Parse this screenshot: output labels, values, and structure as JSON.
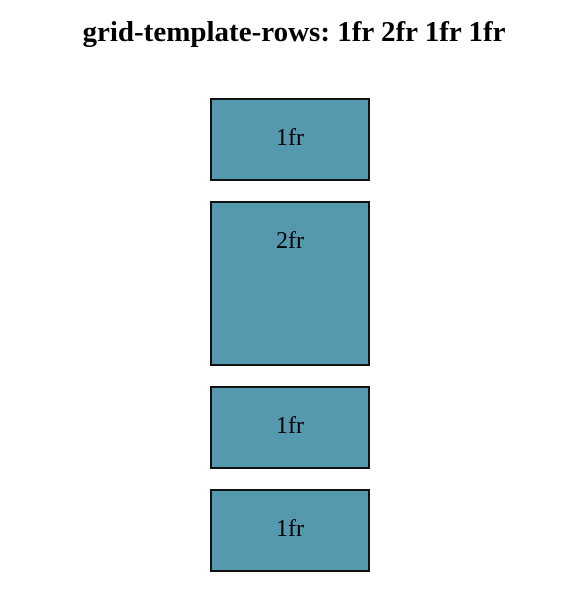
{
  "page": {
    "title": "grid-template-rows: 1fr 2fr 1fr 1fr"
  },
  "grid": {
    "item_color": "#5499ae",
    "border_color": "#111111",
    "items": [
      {
        "label": "1fr"
      },
      {
        "label": "2fr"
      },
      {
        "label": "1fr"
      },
      {
        "label": "1fr"
      }
    ]
  }
}
